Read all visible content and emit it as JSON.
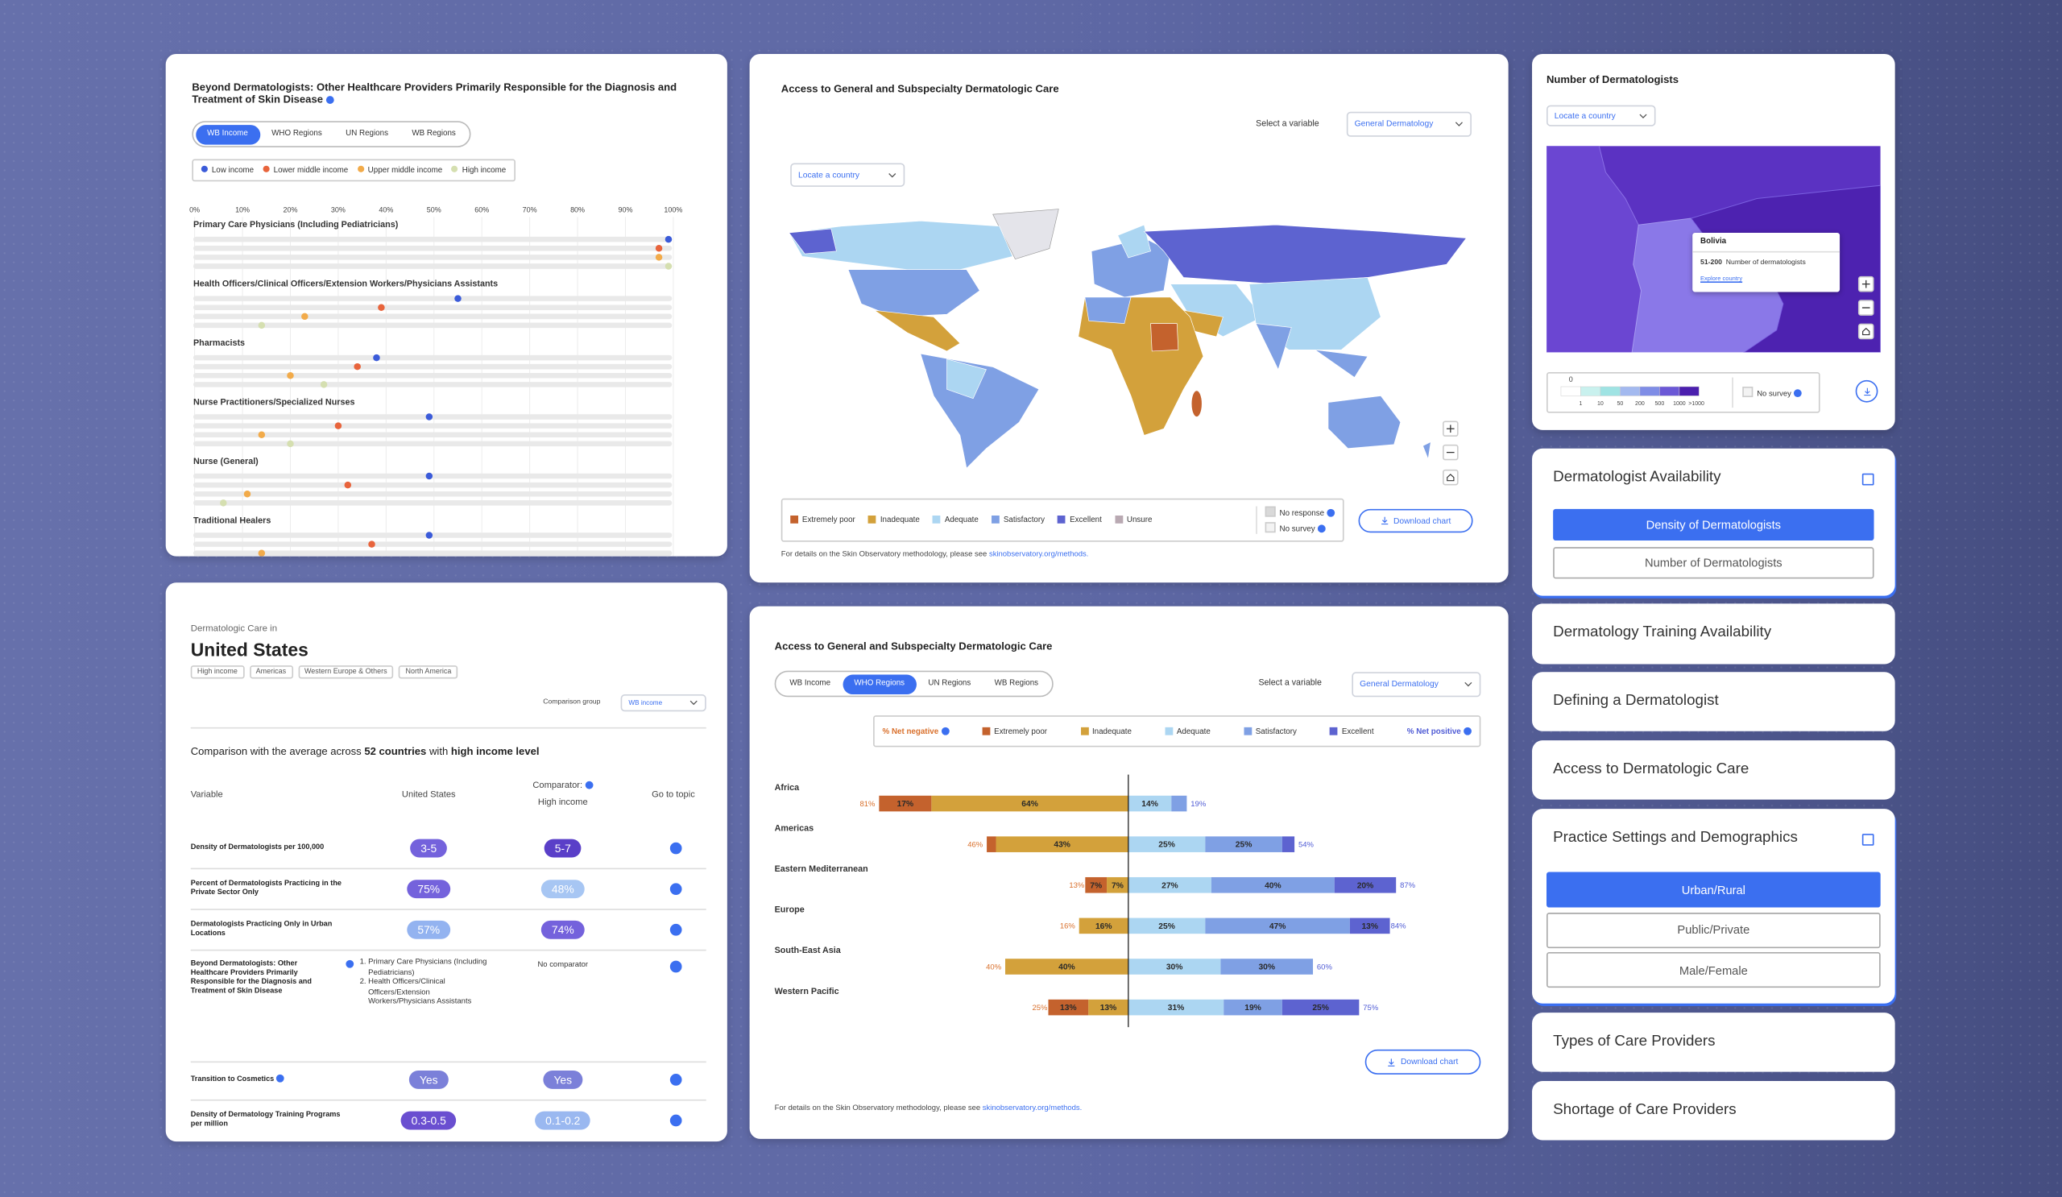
{
  "chart_data": [
    {
      "type": "dot",
      "title": "Beyond Dermatologists: Other Healthcare Providers Primarily Responsible for the Diagnosis and Treatment of Skin Disease",
      "tabs": [
        "WB Income",
        "WHO Regions",
        "UN Regions",
        "WB Regions"
      ],
      "active_tab": 0,
      "categories": [
        "Primary Care Physicians (Including Pediatricians)",
        "Health Officers/Clinical Officers/Extension Workers/Physicians Assistants",
        "Pharmacists",
        "Nurse Practitioners/Specialized Nurses",
        "Nurse (General)",
        "Traditional Healers"
      ],
      "series": [
        {
          "name": "Low income",
          "color": "#3b5bd9",
          "values": [
            99,
            55,
            38,
            49,
            49,
            49
          ]
        },
        {
          "name": "Lower middle income",
          "color": "#e8643c",
          "values": [
            97,
            39,
            34,
            30,
            32,
            37
          ]
        },
        {
          "name": "Upper middle income",
          "color": "#f2ab4a",
          "values": [
            97,
            23,
            20,
            14,
            11,
            14
          ]
        },
        {
          "name": "High income",
          "color": "#d5dfb0",
          "values": [
            99,
            14,
            27,
            20,
            6,
            null
          ]
        }
      ],
      "xlim": [
        0,
        100
      ],
      "xticks": [
        {
          "value": 0,
          "label": "0%"
        },
        {
          "value": 10,
          "label": "10%"
        },
        {
          "value": 20,
          "label": "20%"
        },
        {
          "value": 30,
          "label": "30%"
        },
        {
          "value": 40,
          "label": "40%"
        },
        {
          "value": 50,
          "label": "50%"
        },
        {
          "value": 60,
          "label": "60%"
        },
        {
          "value": 70,
          "label": "70%"
        },
        {
          "value": 80,
          "label": "80%"
        },
        {
          "value": 90,
          "label": "90%"
        },
        {
          "value": 100,
          "label": "100%"
        }
      ],
      "grid": true
    },
    {
      "type": "bar",
      "title": "Access to General and Subspecialty Dermatologic Care",
      "tabs": [
        "WB Income",
        "WHO Regions",
        "UN Regions",
        "WB Regions"
      ],
      "active_tab": 1,
      "variable_label": "Select a variable",
      "variable": "General Dermatology",
      "categories": [
        "Africa",
        "Americas",
        "Eastern Mediterranean",
        "Europe",
        "South-East Asia",
        "Western Pacific"
      ],
      "series": [
        {
          "name": "Extremely poor",
          "color": "#c4622d",
          "side": "negative",
          "values": [
            17,
            3,
            7,
            0,
            0,
            13
          ],
          "value_labels": [
            "17%",
            null,
            "7%",
            null,
            null,
            "13%"
          ]
        },
        {
          "name": "Inadequate",
          "color": "#d3a13b",
          "side": "negative",
          "values": [
            64,
            43,
            7,
            16,
            40,
            13
          ],
          "value_labels": [
            "64%",
            "43%",
            "7%",
            "16%",
            "40%",
            "13%"
          ]
        },
        {
          "name": "Adequate",
          "color": "#acd6f2",
          "side": "positive",
          "values": [
            14,
            25,
            27,
            25,
            30,
            31
          ],
          "value_labels": [
            "14%",
            "25%",
            "27%",
            "25%",
            "30%",
            "31%"
          ]
        },
        {
          "name": "Satisfactory",
          "color": "#7fa0e4",
          "side": "positive",
          "values": [
            5,
            25,
            40,
            47,
            30,
            19
          ],
          "value_labels": [
            null,
            "25%",
            "40%",
            "47%",
            "30%",
            "19%"
          ]
        },
        {
          "name": "Excellent",
          "color": "#5d63d0",
          "side": "positive",
          "values": [
            0,
            4,
            20,
            13,
            0,
            25
          ],
          "value_labels": [
            null,
            null,
            "20%",
            "13%",
            null,
            "25%"
          ]
        }
      ],
      "net_negative": {
        "name": "% Net negative",
        "color": "#d9702c",
        "values": [
          81,
          46,
          13,
          16,
          40,
          25
        ],
        "value_labels": [
          "81%",
          "46%",
          "13%",
          "16%",
          "40%",
          "25%"
        ]
      },
      "net_positive": {
        "name": "% Net positive",
        "color": "#4f5bd5",
        "values": [
          19,
          54,
          87,
          84,
          60,
          75
        ],
        "value_labels": [
          "19%",
          "54%",
          "87%",
          "84%",
          "60%",
          "75%"
        ]
      },
      "download": "Download chart",
      "footnote": "For details on the Skin Observatory methodology, please see",
      "footnote_link": "skinobservatory.org/methods."
    }
  ],
  "map_card": {
    "title": "Access to General and Subspecialty Dermatologic Care",
    "variable_label": "Select a variable",
    "variable": "General Dermatology",
    "locate": "Locate a country",
    "legend": [
      {
        "name": "Extremely poor",
        "color": "#c4622d"
      },
      {
        "name": "Inadequate",
        "color": "#d3a13b"
      },
      {
        "name": "Adequate",
        "color": "#acd6f2"
      },
      {
        "name": "Satisfactory",
        "color": "#7fa0e4"
      },
      {
        "name": "Excellent",
        "color": "#5d63d0"
      },
      {
        "name": "Unsure",
        "color": "#b9a9b2"
      }
    ],
    "legend_extra": [
      {
        "name": "No response",
        "color": "#d9d9d9"
      },
      {
        "name": "No survey",
        "color": "#f3f3f3"
      }
    ],
    "download": "Download chart",
    "footnote": "For details on the Skin Observatory methodology, please see",
    "footnote_link": "skinobservatory.org/methods."
  },
  "count_card": {
    "title": "Number of Dermatologists",
    "locate": "Locate a country",
    "tooltip": {
      "country": "Bolivia",
      "range": "51-200",
      "label": "Number of dermatologists",
      "link": "Explore country"
    },
    "scale": {
      "colors": [
        "#ffffff",
        "#c9f1ee",
        "#9fe3e3",
        "#a3b9ef",
        "#7f8de6",
        "#6b58d6",
        "#4b1fae"
      ],
      "labels": [
        "0",
        "1",
        "10",
        "50",
        "200",
        "500",
        "1000",
        ">1000"
      ]
    },
    "no_survey": "No survey"
  },
  "country_card": {
    "kicker": "Dermatologic Care in",
    "country": "United States",
    "tags": [
      "High income",
      "Americas",
      "Western Europe & Others",
      "North America"
    ],
    "comparison_label": "Comparison group",
    "comparison_value": "WB income",
    "summary": [
      "Comparison with the average across",
      "52 countries",
      "with",
      "high income level"
    ],
    "headers": {
      "variable": "Variable",
      "country": "United States",
      "comparator": "Comparator:",
      "group": "High income",
      "topic": "Go to topic"
    },
    "rows": [
      {
        "variable": "Density of Dermatologists per 100,000",
        "country": {
          "text": "3-5",
          "color": "#7462dc"
        },
        "comparator": {
          "text": "5-7",
          "color": "#5a3fc8"
        }
      },
      {
        "variable": "Percent of Dermatologists Practicing in the Private Sector Only",
        "country": {
          "text": "75%",
          "color": "#7462dc"
        },
        "comparator": {
          "text": "48%",
          "color": "#a7c6f3"
        }
      },
      {
        "variable": "Dermatologists Practicing Only in Urban Locations",
        "country": {
          "text": "57%",
          "color": "#93b3f0"
        },
        "comparator": {
          "text": "74%",
          "color": "#7462dc"
        }
      },
      {
        "variable": "Beyond Dermatologists: Other Healthcare Providers Primarily Responsible for the Diagnosis and Treatment of Skin Disease",
        "country_list": [
          "Primary Care Physicians (Including Pediatricians)",
          "Health Officers/Clinical Officers/Extension Workers/Physicians Assistants"
        ],
        "comparator_note": "No comparator"
      },
      {
        "variable": "Transition to Cosmetics",
        "country": {
          "text": "Yes",
          "color": "#7b80d9"
        },
        "comparator": {
          "text": "Yes",
          "color": "#7b80d9"
        }
      },
      {
        "variable": "Density of Dermatology Training Programs per million",
        "country": {
          "text": "0.3-0.5",
          "color": "#6a4fd0"
        },
        "comparator": {
          "text": "0.1-0.2",
          "color": "#9ab8f0"
        }
      }
    ]
  },
  "topics": [
    {
      "title": "Dermatologist Availability",
      "options": [
        "Density of Dermatologists",
        "Number of Dermatologists"
      ],
      "active": 0
    },
    {
      "title": "Dermatology Training Availability"
    },
    {
      "title": "Defining a Dermatologist"
    },
    {
      "title": "Access to Dermatologic Care"
    },
    {
      "title": "Practice Settings and Demographics",
      "options": [
        "Urban/Rural",
        "Public/Private",
        "Male/Female"
      ],
      "active": 0
    },
    {
      "title": "Types of Care Providers"
    },
    {
      "title": "Shortage of Care Providers"
    }
  ]
}
